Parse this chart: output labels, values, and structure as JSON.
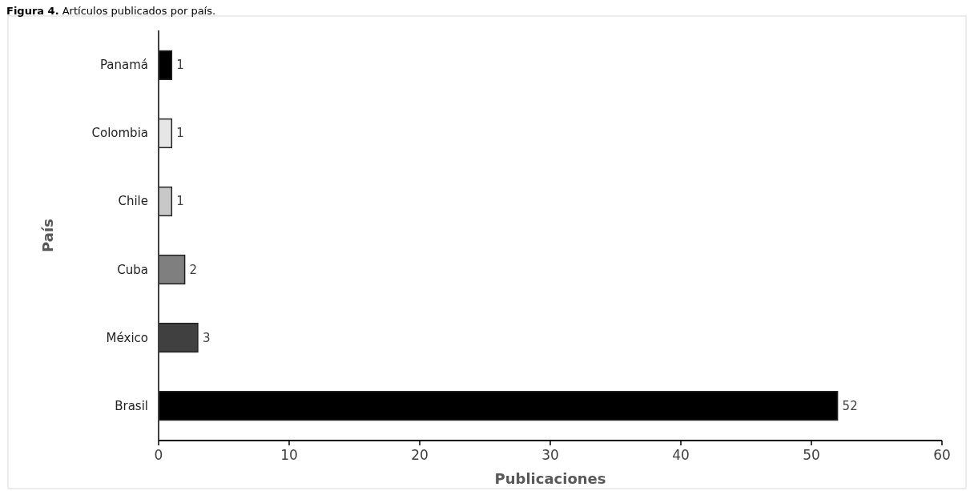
{
  "chart_data": {
    "type": "bar",
    "orientation": "horizontal",
    "title": "Figura 4. Artículos publicados por país.",
    "xlabel": "Publicaciones",
    "ylabel": "País",
    "categories": [
      "Panamá",
      "Colombia",
      "Chile",
      "Cuba",
      "México",
      "Brasil"
    ],
    "values": [
      1,
      1,
      1,
      2,
      3,
      52
    ],
    "colors": [
      "#000000",
      "#e6e6e6",
      "#c8c8c8",
      "#7f7f7f",
      "#404040",
      "#000000"
    ],
    "xlim": [
      0,
      60
    ],
    "xticks": [
      0,
      10,
      20,
      30,
      40,
      50,
      60
    ],
    "grid": false,
    "data_labels": true
  }
}
